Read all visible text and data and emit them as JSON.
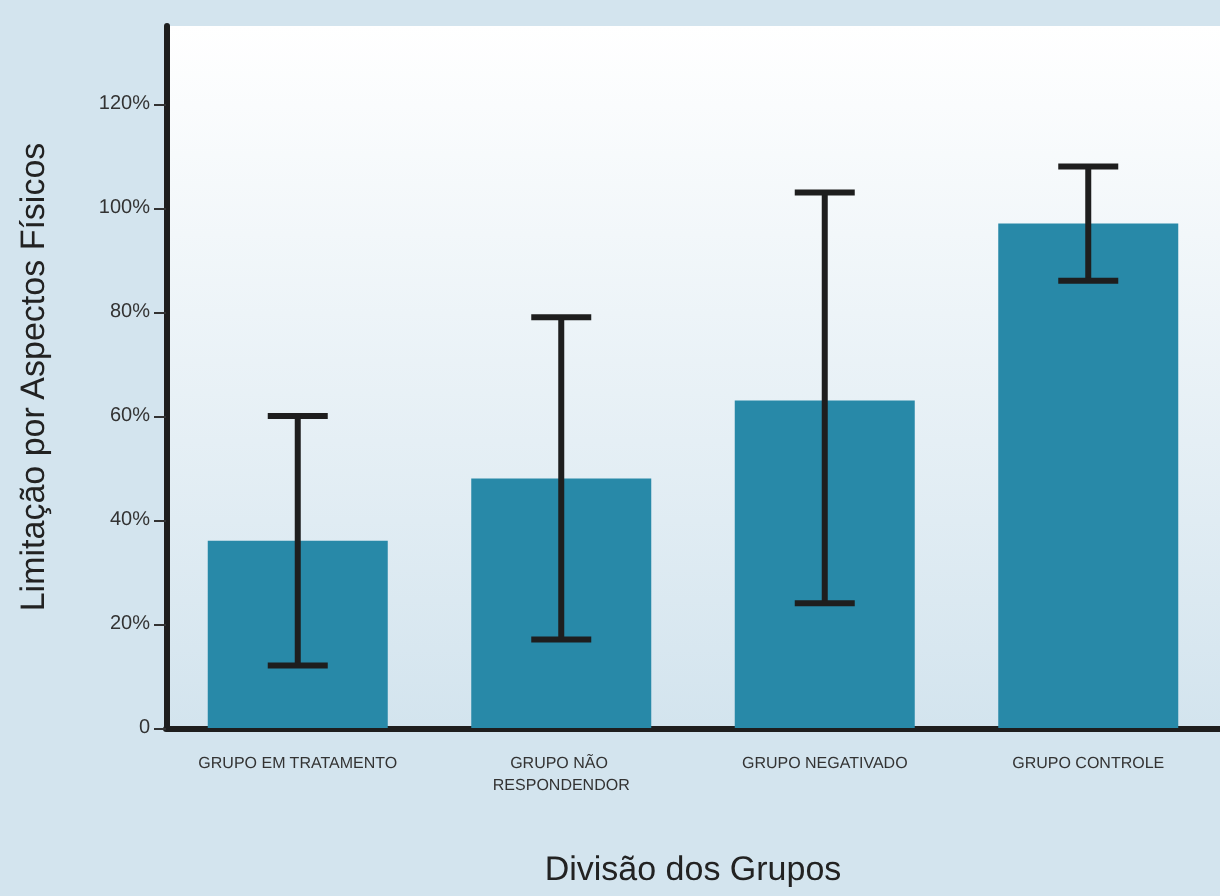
{
  "chart_data": {
    "type": "bar",
    "xlabel": "Divisão dos Grupos",
    "ylabel": "Limitação por Aspectos Físicos",
    "categories": [
      "GRUPO EM TRATAMENTO",
      "GRUPO NÃO RESPONDENDOR",
      "GRUPO NEGATIVADO",
      "GRUPO CONTROLE"
    ],
    "values": [
      36,
      48,
      63,
      97
    ],
    "color": "#2889a8",
    "errors": [
      [
        12,
        60
      ],
      [
        17,
        79
      ],
      [
        24,
        103
      ],
      [
        86,
        108
      ]
    ],
    "ylim": [
      0,
      135
    ],
    "yticks": [
      0,
      {
        "value": 20,
        "label": "20%"
      },
      {
        "value": 40,
        "label": "40%"
      },
      {
        "value": 60,
        "label": "60%"
      },
      {
        "value": 80,
        "label": "80%"
      },
      {
        "value": 100,
        "label": "100%"
      },
      {
        "value": 120,
        "label": "120%"
      }
    ],
    "grid": false
  }
}
